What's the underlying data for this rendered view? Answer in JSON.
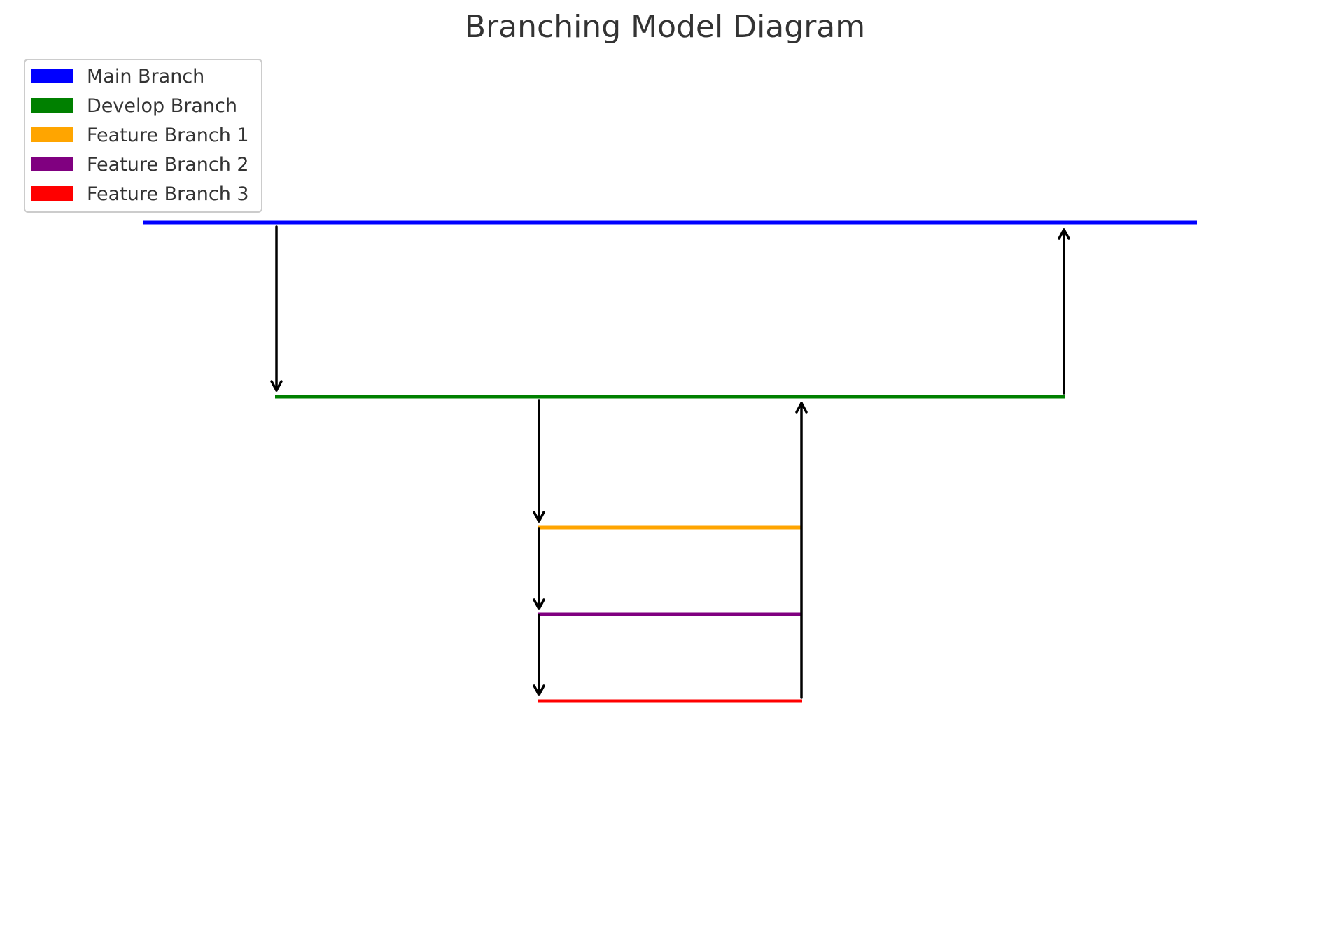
{
  "title": "Branching Model Diagram",
  "legend": [
    {
      "label": "Main Branch",
      "color": "#0000ff"
    },
    {
      "label": "Develop Branch",
      "color": "#008000"
    },
    {
      "label": "Feature Branch 1",
      "color": "#ffa500"
    },
    {
      "label": "Feature Branch 2",
      "color": "#800080"
    },
    {
      "label": "Feature Branch 3",
      "color": "#ff0000"
    }
  ],
  "branches": [
    {
      "id": "main",
      "name": "Main Branch",
      "color": "#0000ff"
    },
    {
      "id": "develop",
      "name": "Develop Branch",
      "color": "#008000"
    },
    {
      "id": "feature1",
      "name": "Feature Branch 1",
      "color": "#ffa500"
    },
    {
      "id": "feature2",
      "name": "Feature Branch 2",
      "color": "#800080"
    },
    {
      "id": "feature3",
      "name": "Feature Branch 3",
      "color": "#ff0000"
    }
  ],
  "connections": [
    {
      "from": "main",
      "to": "develop",
      "direction": "down"
    },
    {
      "from": "develop",
      "to": "main",
      "direction": "up"
    },
    {
      "from": "develop",
      "to": "feature1",
      "direction": "down"
    },
    {
      "from": "develop",
      "to": "feature2",
      "direction": "down"
    },
    {
      "from": "develop",
      "to": "feature3",
      "direction": "down"
    },
    {
      "from": "feature3",
      "to": "develop",
      "direction": "up"
    }
  ],
  "arrow_color": "#000000"
}
